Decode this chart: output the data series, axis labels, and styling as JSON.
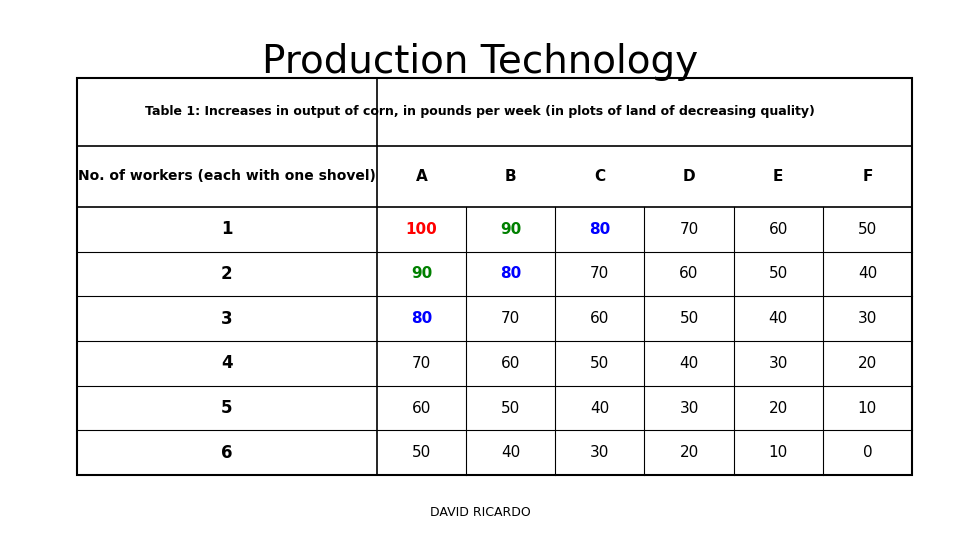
{
  "title": "Production Technology",
  "subtitle": "Table 1: Increases in output of corn, in pounds per week (in plots of land of decreasing quality)",
  "header_col": "No. of workers (each with one shovel)",
  "col_headers": [
    "A",
    "B",
    "C",
    "D",
    "E",
    "F"
  ],
  "rows": [
    [
      1,
      100,
      90,
      80,
      70,
      60,
      50
    ],
    [
      2,
      90,
      80,
      70,
      60,
      50,
      40
    ],
    [
      3,
      80,
      70,
      60,
      50,
      40,
      30
    ],
    [
      4,
      70,
      60,
      50,
      40,
      30,
      20
    ],
    [
      5,
      60,
      50,
      40,
      30,
      20,
      10
    ],
    [
      6,
      50,
      40,
      30,
      20,
      10,
      0
    ]
  ],
  "cell_colors": [
    [
      "black",
      "red",
      "green",
      "blue",
      "black",
      "black",
      "black"
    ],
    [
      "black",
      "green",
      "blue",
      "black",
      "black",
      "black",
      "black"
    ],
    [
      "black",
      "blue",
      "black",
      "black",
      "black",
      "black",
      "black"
    ],
    [
      "black",
      "black",
      "black",
      "black",
      "black",
      "black",
      "black"
    ],
    [
      "black",
      "black",
      "black",
      "black",
      "black",
      "black",
      "black"
    ],
    [
      "black",
      "black",
      "black",
      "black",
      "black",
      "black",
      "black"
    ]
  ],
  "footer": "DAVID RICARDO",
  "background_color": "#ffffff",
  "title_fontsize": 28,
  "subtitle_fontsize": 9,
  "cell_fontsize": 11,
  "header_fontsize": 10,
  "footer_fontsize": 9
}
